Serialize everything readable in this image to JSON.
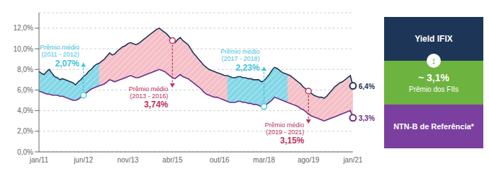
{
  "chart_data": {
    "type": "line",
    "grid": true,
    "categories": [
      "jan/11",
      null,
      null,
      null,
      null,
      null,
      null,
      null,
      null,
      null,
      null,
      null,
      null,
      null,
      null,
      null,
      null,
      "jun/12",
      null,
      null,
      null,
      null,
      null,
      null,
      null,
      null,
      null,
      null,
      null,
      null,
      null,
      null,
      null,
      null,
      "nov/13",
      null,
      null,
      null,
      null,
      null,
      null,
      null,
      null,
      null,
      null,
      null,
      null,
      null,
      null,
      null,
      null,
      "abr/15",
      null,
      null,
      null,
      null,
      null,
      null,
      null,
      null,
      null,
      null,
      null,
      null,
      null,
      null,
      null,
      null,
      null,
      "out/16",
      null,
      null,
      null,
      null,
      null,
      null,
      null,
      null,
      null,
      null,
      null,
      null,
      null,
      null,
      null,
      null,
      "mar/18",
      null,
      null,
      null,
      null,
      null,
      null,
      null,
      null,
      null,
      null,
      null,
      null,
      null,
      null,
      null,
      null,
      "ago/19",
      null,
      null,
      null,
      null,
      null,
      null,
      null,
      null,
      null,
      null,
      null,
      null,
      null,
      null,
      null,
      null,
      "jan/21"
    ],
    "series": [
      {
        "name": "Yield IFIX",
        "color": "#1d3557",
        "legend_color": "#1d3557",
        "end_label": "6,4%",
        "values": [
          0.078,
          0.076,
          0.075,
          0.078,
          0.08,
          0.076,
          0.073,
          0.072,
          0.07,
          0.071,
          0.07,
          0.069,
          0.068,
          0.067,
          0.065,
          0.068,
          0.07,
          0.073,
          0.075,
          0.078,
          0.08,
          0.083,
          0.085,
          0.086,
          0.088,
          0.09,
          0.093,
          0.096,
          0.094,
          0.095,
          0.098,
          0.1,
          0.102,
          0.103,
          0.105,
          0.106,
          0.105,
          0.104,
          0.105,
          0.107,
          0.109,
          0.111,
          0.113,
          0.115,
          0.117,
          0.119,
          0.12,
          0.118,
          0.116,
          0.114,
          0.111,
          0.108,
          0.106,
          0.109,
          0.111,
          0.108,
          0.106,
          0.104,
          0.1,
          0.096,
          0.093,
          0.09,
          0.087,
          0.084,
          0.082,
          0.08,
          0.079,
          0.078,
          0.077,
          0.076,
          0.075,
          0.074,
          0.074,
          0.073,
          0.072,
          0.072,
          0.073,
          0.073,
          0.072,
          0.072,
          0.071,
          0.071,
          0.07,
          0.07,
          0.07,
          0.068,
          0.069,
          0.072,
          0.075,
          0.079,
          0.082,
          0.081,
          0.079,
          0.077,
          0.076,
          0.075,
          0.074,
          0.072,
          0.07,
          0.068,
          0.066,
          0.063,
          0.061,
          0.059,
          0.057,
          0.055,
          0.054,
          0.053,
          0.053,
          0.052,
          0.054,
          0.057,
          0.06,
          0.063,
          0.065,
          0.067,
          0.068,
          0.07,
          0.072,
          0.074,
          0.064
        ]
      },
      {
        "name": "NTN-B de Referência*",
        "color": "#6b2d8b",
        "legend_color": "#7b3fa0",
        "end_label": "3,3%",
        "values": [
          0.059,
          0.058,
          0.057,
          0.056,
          0.056,
          0.055,
          0.055,
          0.055,
          0.054,
          0.054,
          0.053,
          0.052,
          0.051,
          0.05,
          0.05,
          0.051,
          0.053,
          0.055,
          0.057,
          0.059,
          0.061,
          0.062,
          0.063,
          0.064,
          0.065,
          0.066,
          0.068,
          0.07,
          0.069,
          0.068,
          0.069,
          0.07,
          0.071,
          0.072,
          0.073,
          0.074,
          0.073,
          0.072,
          0.072,
          0.073,
          0.074,
          0.075,
          0.076,
          0.077,
          0.078,
          0.079,
          0.08,
          0.079,
          0.078,
          0.076,
          0.074,
          0.072,
          0.071,
          0.073,
          0.075,
          0.073,
          0.072,
          0.071,
          0.069,
          0.067,
          0.065,
          0.063,
          0.061,
          0.058,
          0.056,
          0.055,
          0.054,
          0.053,
          0.053,
          0.052,
          0.051,
          0.05,
          0.049,
          0.048,
          0.048,
          0.048,
          0.049,
          0.049,
          0.048,
          0.048,
          0.047,
          0.047,
          0.046,
          0.046,
          0.045,
          0.044,
          0.044,
          0.046,
          0.048,
          0.05,
          0.053,
          0.052,
          0.051,
          0.05,
          0.049,
          0.048,
          0.047,
          0.046,
          0.045,
          0.044,
          0.042,
          0.041,
          0.039,
          0.037,
          0.035,
          0.034,
          0.033,
          0.032,
          0.031,
          0.03,
          0.031,
          0.032,
          0.033,
          0.034,
          0.035,
          0.036,
          0.037,
          0.038,
          0.039,
          0.04,
          0.033
        ]
      }
    ],
    "ylim": [
      0,
      0.135
    ],
    "yticks": [
      {
        "value": 0,
        "label": "0,0%"
      },
      {
        "value": 0.02,
        "label": "2,0%"
      },
      {
        "value": 0.04,
        "label": "4,0%"
      },
      {
        "value": 0.06,
        "label": "6,0%"
      },
      {
        "value": 0.08,
        "label": "8,0%"
      },
      {
        "value": 0.1,
        "label": "10,0%"
      },
      {
        "value": 0.12,
        "label": "12,0%"
      }
    ],
    "premium_fill_color": "#f4b8c1",
    "shaded_periods": [
      {
        "start": 0,
        "end": 23,
        "color": "#7dd8e8"
      },
      {
        "start": 72,
        "end": 95,
        "color": "#7dd8e8"
      }
    ],
    "annotations": [
      {
        "x": 17,
        "series": 1,
        "color": "#40c4df",
        "lines": [
          "Prêmio médio",
          "(2011 - 2012)"
        ],
        "highlight": "2,07%"
      },
      {
        "x": 51,
        "series": 0,
        "color": "#c0305a",
        "lines": [
          "Prêmio médio",
          "(2013 - 2016)"
        ],
        "highlight": "3,74%"
      },
      {
        "x": 86,
        "series": 1,
        "color": "#40c4df",
        "lines": [
          "Prêmio médio",
          "(2017 - 2018)"
        ],
        "highlight": "2,23%"
      },
      {
        "x": 103,
        "series": 0,
        "color": "#c0305a",
        "lines": [
          "Prêmio médio",
          "(2019 - 2021)"
        ],
        "highlight": "3,15%"
      }
    ],
    "premium": {
      "value_text": "~ 3,1%",
      "label": "Prêmio dos FIIs",
      "color": "#6db33f",
      "symbol": "↕"
    }
  }
}
